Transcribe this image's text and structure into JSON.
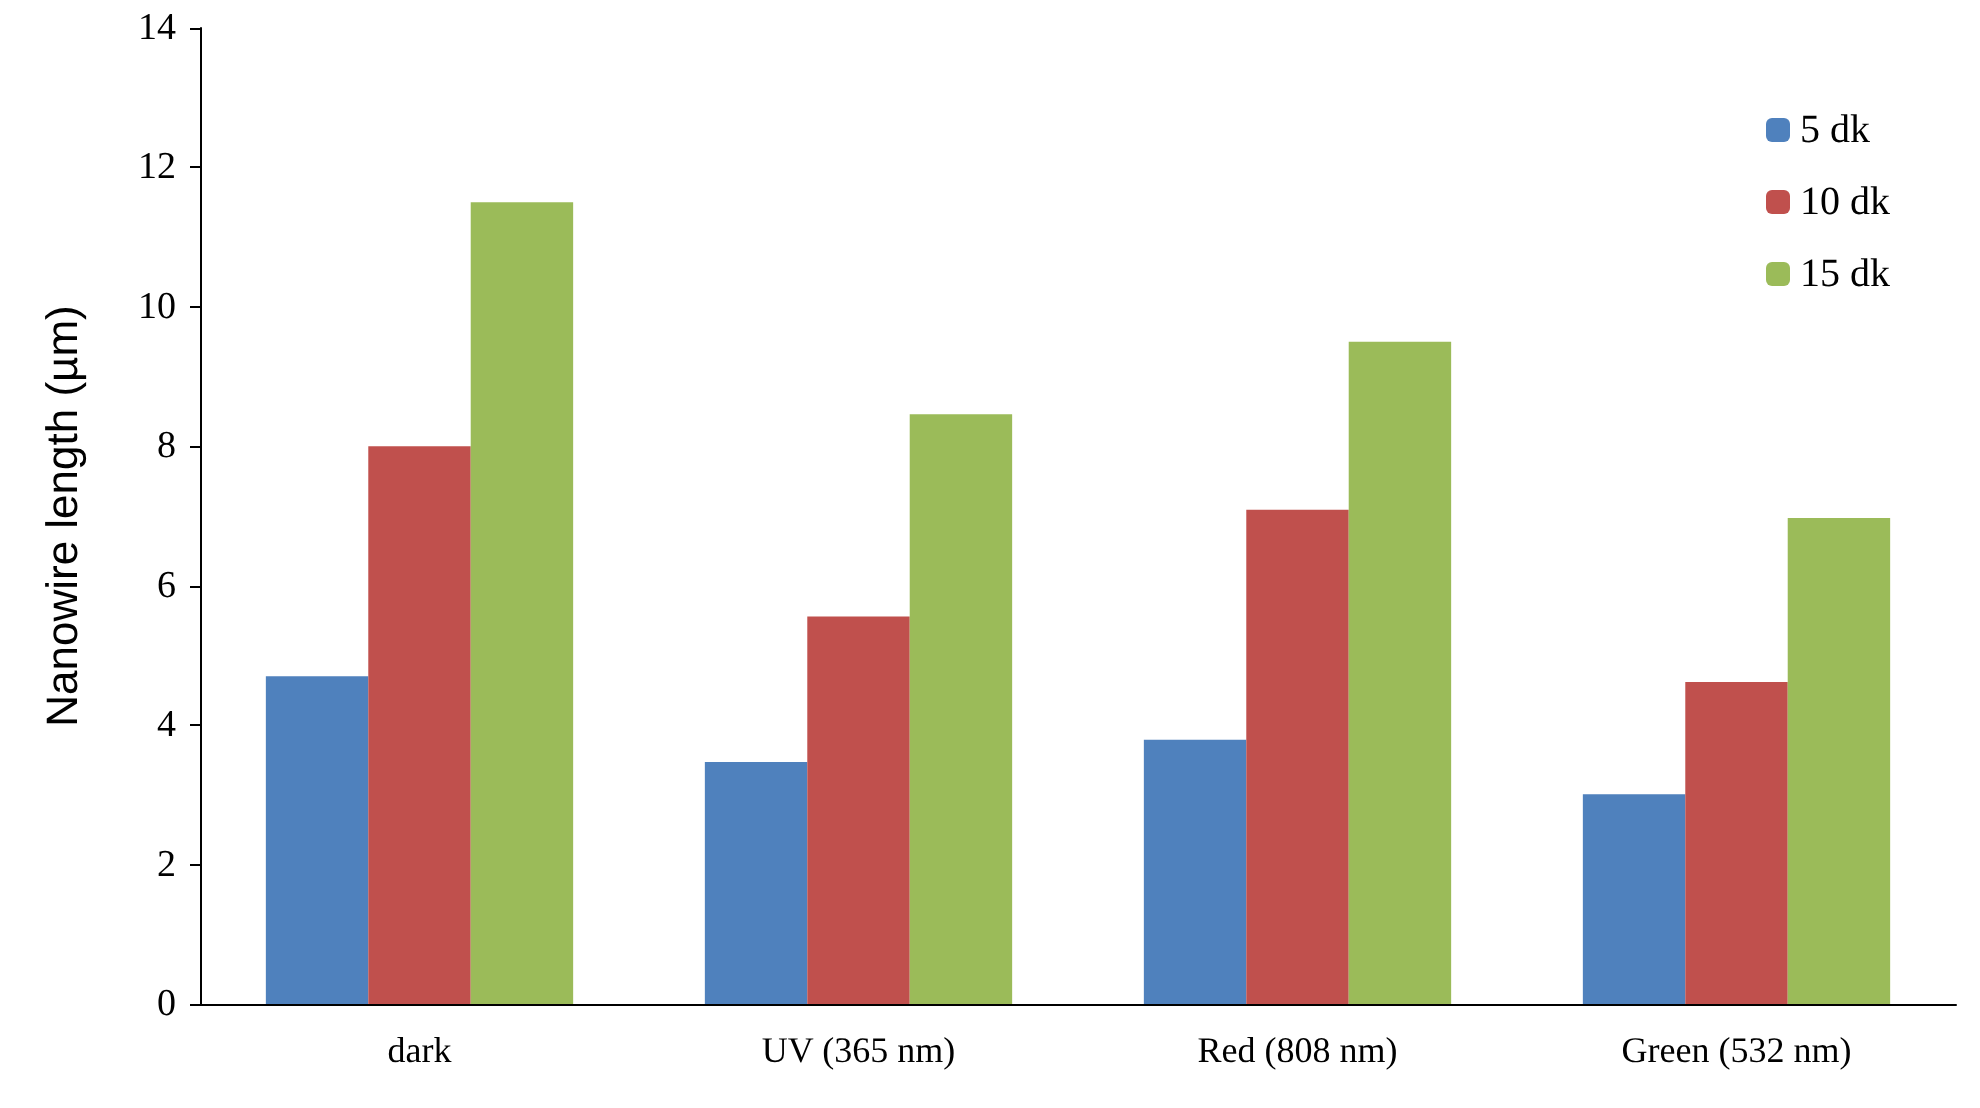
{
  "chart_data": {
    "type": "bar",
    "ylabel": "Nanowire length (µm)",
    "categories": [
      "dark",
      "UV (365 nm)",
      "Red (808 nm)",
      "Green (532 nm)"
    ],
    "series": [
      {
        "name": "5 dk",
        "color": "#4f81bd",
        "values": [
          4.7,
          3.47,
          3.79,
          3.01
        ]
      },
      {
        "name": "10 dk",
        "color": "#c0504d",
        "values": [
          8.0,
          5.56,
          7.09,
          4.62
        ]
      },
      {
        "name": "15 dk",
        "color": "#9bbb59",
        "values": [
          11.5,
          8.46,
          9.5,
          6.97
        ]
      }
    ],
    "ylim": [
      0,
      14
    ],
    "yticks": [
      0,
      2,
      4,
      6,
      8,
      10,
      12,
      14
    ],
    "grid": false,
    "legend": "top right"
  }
}
